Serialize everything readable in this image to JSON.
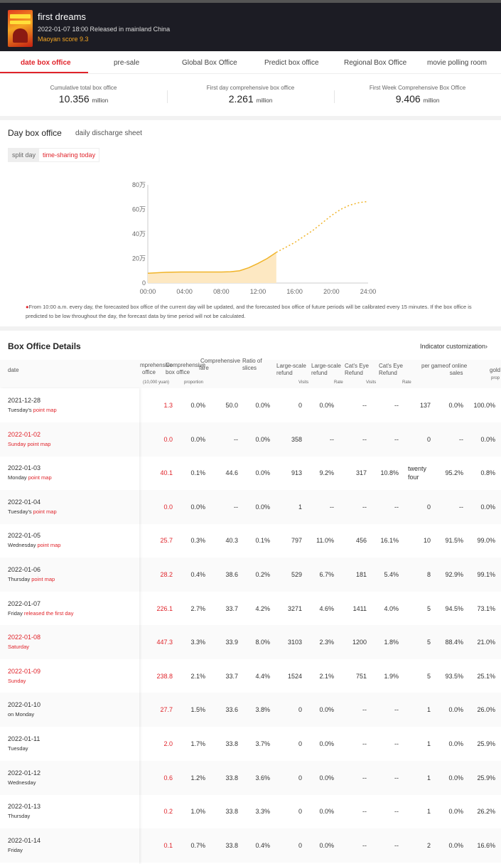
{
  "movie": {
    "title": "first dreams",
    "release": "2022-01-07 18:00 Released in mainland China",
    "score": "Maoyan score 9.3"
  },
  "tabs": [
    {
      "label": "date box office",
      "active": true
    },
    {
      "label": "pre-sale"
    },
    {
      "label": "Global Box Office"
    },
    {
      "label": "Predict box office"
    },
    {
      "label": "Regional Box Office"
    },
    {
      "label": "movie polling room"
    }
  ],
  "summary": [
    {
      "label": "Cumulative total box office",
      "value": "10.356",
      "unit": "million"
    },
    {
      "label": "First day comprehensive box office",
      "value": "2.261",
      "unit": "million"
    },
    {
      "label": "First Week Comprehensive Box Office",
      "value": "9.406",
      "unit": "million"
    }
  ],
  "day_section": {
    "title": "Day box office",
    "subtitle": "daily discharge sheet",
    "toggle": [
      "split day",
      "time-sharing today"
    ]
  },
  "chart_data": {
    "type": "area",
    "x_ticks": [
      "00:00",
      "04:00",
      "08:00",
      "12:00",
      "16:00",
      "20:00",
      "24:00"
    ],
    "y_ticks": [
      "0",
      "20万",
      "40万",
      "60万",
      "80万"
    ],
    "ylim": [
      0,
      80
    ],
    "xlim": [
      0,
      24
    ],
    "actual": {
      "x": [
        0,
        2,
        4,
        6,
        8,
        9,
        10,
        11,
        12,
        13,
        14
      ],
      "y": [
        8,
        8.8,
        9,
        9,
        9,
        9.2,
        10,
        12.5,
        16,
        20,
        25
      ]
    },
    "forecast": {
      "x": [
        14,
        15,
        16,
        17,
        18,
        19,
        20,
        21,
        22,
        23,
        24
      ],
      "y": [
        25,
        29,
        33,
        38,
        43,
        49,
        55,
        60,
        63.5,
        65.5,
        66.5
      ]
    },
    "colors": {
      "line": "#f0b429",
      "fill": "#fde8c2"
    }
  },
  "note": "From 10:00 a.m. every day, the forecasted box office of the current day will be updated, and the forecasted box office of future periods will be calibrated every 15 minutes. If the box office is predicted to be low throughout the day, the forecast data by time period will not be calculated.",
  "details": {
    "title": "Box Office Details",
    "indicator_link": "Indicator customization",
    "headers": {
      "date": "date",
      "h1a": "mprehensive",
      "h1b": "office",
      "h1c": "(10,000 yuan)",
      "h2a": "Comprehensive",
      "h2b": "box office",
      "h2c": "proportion",
      "h3a": "Comprehensive",
      "h3b": "fare",
      "h4a": "Ratio of",
      "h4b": "slices",
      "h5a": "Large-scale",
      "h5b": "refund",
      "h5c": "Visits",
      "h6a": "Large-scale",
      "h6b": "refund",
      "h6c": "Rate",
      "h7a": "Cat's Eye",
      "h7b": "Refund",
      "h7c": "Visits",
      "h8a": "Cat's Eye",
      "h8b": "Refund",
      "h8c": "Rate",
      "h9a": "per game",
      "h10a": "of online",
      "h10b": "sales",
      "h11a": "gold",
      "h11b": "prop"
    },
    "rows": [
      {
        "date": "2021-12-28",
        "day": "Tuesday's",
        "pm": "point map",
        "red": false,
        "v": [
          "1.3",
          "0.0%",
          "50.0",
          "0.0%",
          "0",
          "0.0%",
          "--",
          "--",
          "137",
          "0.0%",
          "100.0%"
        ]
      },
      {
        "date": "2022-01-02",
        "day": "Sunday",
        "pm": "point map",
        "red": true,
        "v": [
          "0.0",
          "0.0%",
          "--",
          "0.0%",
          "358",
          "--",
          "--",
          "--",
          "0",
          "--",
          "0.0%"
        ]
      },
      {
        "date": "2022-01-03",
        "day": "Monday",
        "pm": "point map",
        "red": false,
        "v": [
          "40.1",
          "0.1%",
          "44.6",
          "0.0%",
          "913",
          "9.2%",
          "317",
          "10.8%",
          "twenty four",
          "95.2%",
          "0.8%"
        ]
      },
      {
        "date": "2022-01-04",
        "day": "Tuesday's",
        "pm": "point map",
        "red": false,
        "v": [
          "0.0",
          "0.0%",
          "--",
          "0.0%",
          "1",
          "--",
          "--",
          "--",
          "0",
          "--",
          "0.0%"
        ]
      },
      {
        "date": "2022-01-05",
        "day": "Wednesday",
        "pm": "point map",
        "red": false,
        "v": [
          "25.7",
          "0.3%",
          "40.3",
          "0.1%",
          "797",
          "11.0%",
          "456",
          "16.1%",
          "10",
          "91.5%",
          "99.0%"
        ]
      },
      {
        "date": "2022-01-06",
        "day": "Thursday",
        "pm": "point map",
        "red": false,
        "v": [
          "28.2",
          "0.4%",
          "38.6",
          "0.2%",
          "529",
          "6.7%",
          "181",
          "5.4%",
          "8",
          "92.9%",
          "99.1%"
        ]
      },
      {
        "date": "2022-01-07",
        "day": "Friday",
        "pm": "released the first day",
        "red": false,
        "v": [
          "226.1",
          "2.7%",
          "33.7",
          "4.2%",
          "3271",
          "4.6%",
          "1411",
          "4.0%",
          "5",
          "94.5%",
          "73.1%"
        ]
      },
      {
        "date": "2022-01-08",
        "day": "Saturday",
        "pm": "",
        "red": true,
        "v": [
          "447.3",
          "3.3%",
          "33.9",
          "8.0%",
          "3103",
          "2.3%",
          "1200",
          "1.8%",
          "5",
          "88.4%",
          "21.0%"
        ]
      },
      {
        "date": "2022-01-09",
        "day": "Sunday",
        "pm": "",
        "red": true,
        "v": [
          "238.8",
          "2.1%",
          "33.7",
          "4.4%",
          "1524",
          "2.1%",
          "751",
          "1.9%",
          "5",
          "93.5%",
          "25.1%"
        ]
      },
      {
        "date": "2022-01-10",
        "day": "on Monday",
        "pm": "",
        "red": false,
        "v": [
          "27.7",
          "1.5%",
          "33.6",
          "3.8%",
          "0",
          "0.0%",
          "--",
          "--",
          "1",
          "0.0%",
          "26.0%"
        ]
      },
      {
        "date": "2022-01-11",
        "day": "Tuesday",
        "pm": "",
        "red": false,
        "v": [
          "2.0",
          "1.7%",
          "33.8",
          "3.7%",
          "0",
          "0.0%",
          "--",
          "--",
          "1",
          "0.0%",
          "25.9%"
        ]
      },
      {
        "date": "2022-01-12",
        "day": "Wednesday",
        "pm": "",
        "red": false,
        "v": [
          "0.6",
          "1.2%",
          "33.8",
          "3.6%",
          "0",
          "0.0%",
          "--",
          "--",
          "1",
          "0.0%",
          "25.9%"
        ]
      },
      {
        "date": "2022-01-13",
        "day": "Thursday",
        "pm": "",
        "red": false,
        "v": [
          "0.2",
          "1.0%",
          "33.8",
          "3.3%",
          "0",
          "0.0%",
          "--",
          "--",
          "1",
          "0.0%",
          "26.2%"
        ]
      },
      {
        "date": "2022-01-14",
        "day": "Friday",
        "pm": "",
        "red": false,
        "v": [
          "0.1",
          "0.7%",
          "33.8",
          "0.4%",
          "0",
          "0.0%",
          "--",
          "--",
          "2",
          "0.0%",
          "16.6%"
        ]
      }
    ]
  }
}
